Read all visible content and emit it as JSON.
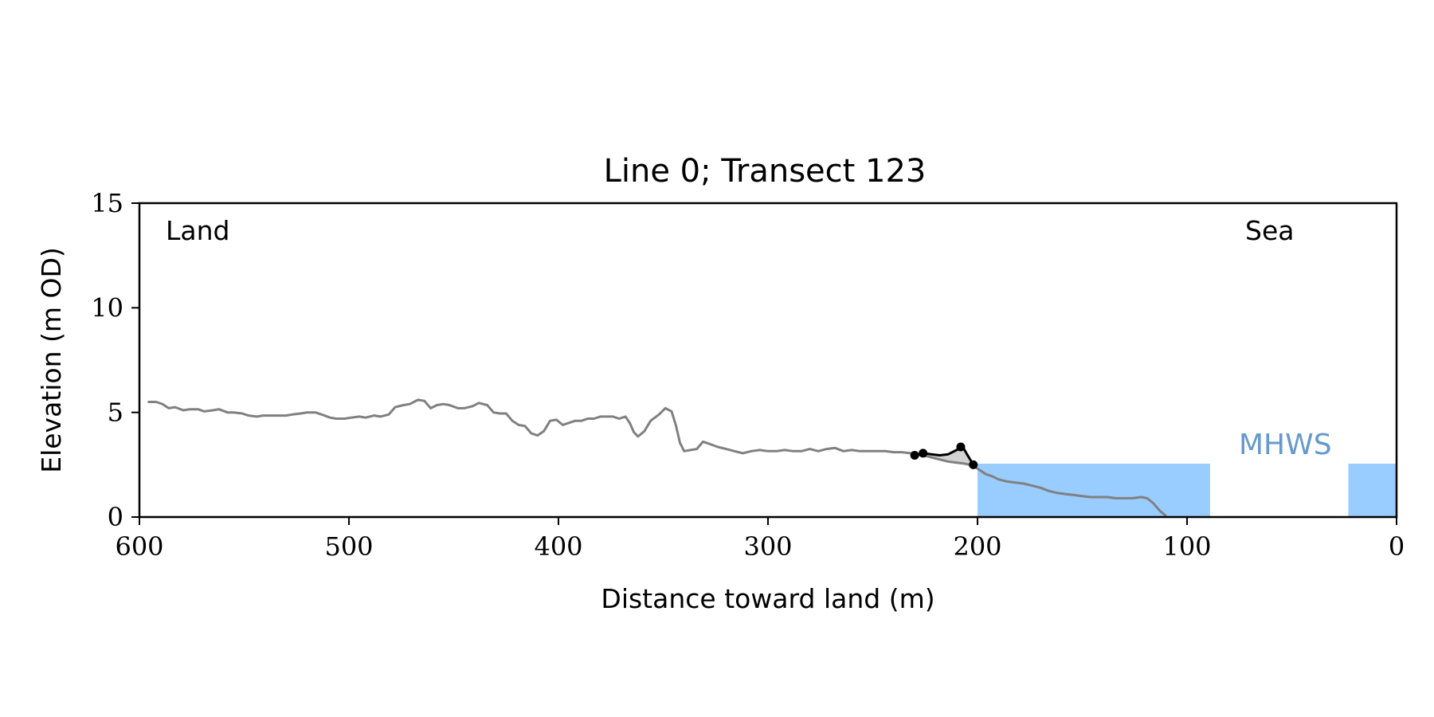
{
  "chart_data": {
    "type": "line",
    "title": "Line 0; Transect 123",
    "xlabel": "Distance toward land (m)",
    "ylabel": "Elevation (m OD)",
    "xlim": [
      600,
      0
    ],
    "ylim": [
      0,
      15
    ],
    "x_ticks": [
      600,
      500,
      400,
      300,
      200,
      100,
      0
    ],
    "x_tick_labels": [
      "600",
      "500",
      "400",
      "300",
      "200",
      "100",
      "0"
    ],
    "y_ticks": [
      0,
      5,
      10,
      15
    ],
    "y_tick_labels": [
      "0",
      "5",
      "10",
      "15"
    ],
    "grid": false,
    "annotations": {
      "land": "Land",
      "sea": "Sea",
      "mhws": "MHWS"
    },
    "mhws_level": 2.55,
    "water_regions": [
      [
        200,
        89
      ],
      [
        23,
        0
      ]
    ],
    "colors": {
      "profile": "#808080",
      "feature": "#000000",
      "feature_fill": "#d3d3d3",
      "water": "#99ccff",
      "mhws_text": "#6699cc"
    },
    "series": [
      {
        "x": [
          596,
          592,
          589,
          586,
          583,
          579,
          576,
          572,
          569,
          565,
          562,
          558,
          555,
          551,
          548,
          544,
          541,
          537,
          534,
          530,
          527,
          523,
          520,
          516,
          513,
          509,
          506,
          502,
          499,
          495,
          492,
          488,
          485,
          481,
          478,
          474,
          471,
          467,
          464,
          461,
          458,
          455,
          452,
          448,
          445,
          441,
          438,
          434,
          431,
          428,
          425,
          422,
          419,
          416,
          413,
          410,
          407,
          404,
          401,
          398,
          395,
          392,
          389,
          386,
          383,
          380,
          377,
          374,
          371,
          368,
          366,
          364,
          362,
          359,
          356,
          354,
          352,
          349,
          346,
          344,
          342,
          340,
          337,
          334,
          331,
          328,
          324,
          320,
          316,
          312,
          308,
          304,
          300,
          296,
          292,
          288,
          284,
          280,
          276,
          272,
          268,
          264,
          260,
          256,
          252,
          248,
          244,
          240,
          236,
          232,
          229,
          226,
          222,
          218,
          214,
          210,
          206,
          202,
          199,
          196,
          193,
          190,
          186,
          182,
          178,
          174,
          170,
          166,
          162,
          158,
          154,
          150,
          146,
          142,
          138,
          134,
          130,
          126,
          122,
          119,
          116,
          113,
          110
        ],
        "y": [
          5.5,
          5.5,
          5.4,
          5.2,
          5.25,
          5.1,
          5.15,
          5.15,
          5.05,
          5.1,
          5.15,
          5.0,
          5.0,
          4.95,
          4.85,
          4.8,
          4.85,
          4.85,
          4.85,
          4.85,
          4.9,
          4.95,
          5.0,
          5.0,
          4.9,
          4.75,
          4.7,
          4.7,
          4.75,
          4.8,
          4.75,
          4.85,
          4.8,
          4.9,
          5.25,
          5.35,
          5.4,
          5.6,
          5.55,
          5.2,
          5.35,
          5.4,
          5.35,
          5.2,
          5.2,
          5.3,
          5.45,
          5.35,
          5.0,
          4.95,
          4.95,
          4.6,
          4.4,
          4.35,
          4.0,
          3.9,
          4.1,
          4.6,
          4.65,
          4.4,
          4.5,
          4.6,
          4.6,
          4.7,
          4.7,
          4.8,
          4.8,
          4.8,
          4.7,
          4.8,
          4.5,
          4.05,
          3.85,
          4.1,
          4.6,
          4.75,
          4.9,
          5.2,
          5.05,
          4.4,
          3.55,
          3.15,
          3.2,
          3.25,
          3.6,
          3.5,
          3.35,
          3.25,
          3.15,
          3.05,
          3.15,
          3.2,
          3.15,
          3.15,
          3.2,
          3.15,
          3.15,
          3.25,
          3.15,
          3.25,
          3.3,
          3.15,
          3.2,
          3.15,
          3.15,
          3.15,
          3.15,
          3.1,
          3.1,
          3.05,
          2.95,
          2.95,
          2.85,
          2.75,
          2.65,
          2.6,
          2.55,
          2.45,
          2.25,
          2.05,
          1.95,
          1.8,
          1.7,
          1.65,
          1.6,
          1.5,
          1.4,
          1.25,
          1.15,
          1.1,
          1.05,
          1.0,
          0.95,
          0.95,
          0.95,
          0.9,
          0.9,
          0.9,
          0.95,
          0.9,
          0.65,
          0.3,
          0.05
        ]
      },
      {
        "x": [
          230,
          226,
          222,
          218,
          214,
          210,
          207,
          205,
          202
        ],
        "y": [
          2.95,
          3.05,
          3.0,
          2.95,
          3.0,
          3.2,
          3.35,
          3.0,
          2.5
        ],
        "markers": [
          [
            230,
            2.95
          ],
          [
            226,
            3.05
          ],
          [
            208,
            3.35
          ],
          [
            202,
            2.5
          ]
        ]
      }
    ]
  }
}
